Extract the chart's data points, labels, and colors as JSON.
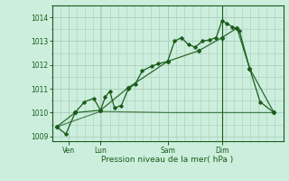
{
  "bg_color": "#cceedd",
  "grid_color": "#aaccbb",
  "line_color": "#1a5c1a",
  "xlabel": "Pression niveau de la mer( hPa )",
  "ylim": [
    1008.8,
    1014.5
  ],
  "yticks": [
    1009,
    1010,
    1011,
    1012,
    1013,
    1014
  ],
  "xtick_labels": [
    "Ven",
    "Lun",
    "Sam",
    "Dim"
  ],
  "xtick_pos": [
    0.07,
    0.21,
    0.5,
    0.735
  ],
  "vline_pos": [
    0.735
  ],
  "series1_x": [
    0.02,
    0.06,
    0.1,
    0.14,
    0.18,
    0.21,
    0.23,
    0.25,
    0.27,
    0.3,
    0.33,
    0.36,
    0.39,
    0.43,
    0.46,
    0.5,
    0.53,
    0.56,
    0.59,
    0.62,
    0.65,
    0.68,
    0.71,
    0.735,
    0.755,
    0.78,
    0.81,
    0.855,
    0.9,
    0.96
  ],
  "series1_y": [
    1009.4,
    1009.1,
    1010.0,
    1010.45,
    1010.6,
    1010.1,
    1010.65,
    1010.9,
    1010.2,
    1010.3,
    1011.0,
    1011.2,
    1011.75,
    1011.95,
    1012.05,
    1012.15,
    1013.0,
    1013.15,
    1012.85,
    1012.75,
    1013.0,
    1013.05,
    1013.15,
    1013.85,
    1013.75,
    1013.6,
    1013.45,
    1011.85,
    1010.45,
    1010.0
  ],
  "series2_x": [
    0.02,
    0.1,
    0.21,
    0.33,
    0.5,
    0.635,
    0.735,
    0.8,
    0.855,
    0.96
  ],
  "series2_y": [
    1009.4,
    1010.0,
    1010.1,
    1011.05,
    1012.15,
    1012.6,
    1013.15,
    1013.55,
    1011.85,
    1010.0
  ],
  "series3_x": [
    0.02,
    0.21,
    0.5,
    0.735,
    0.96
  ],
  "series3_y": [
    1009.4,
    1010.05,
    1010.0,
    1010.0,
    1010.0
  ]
}
